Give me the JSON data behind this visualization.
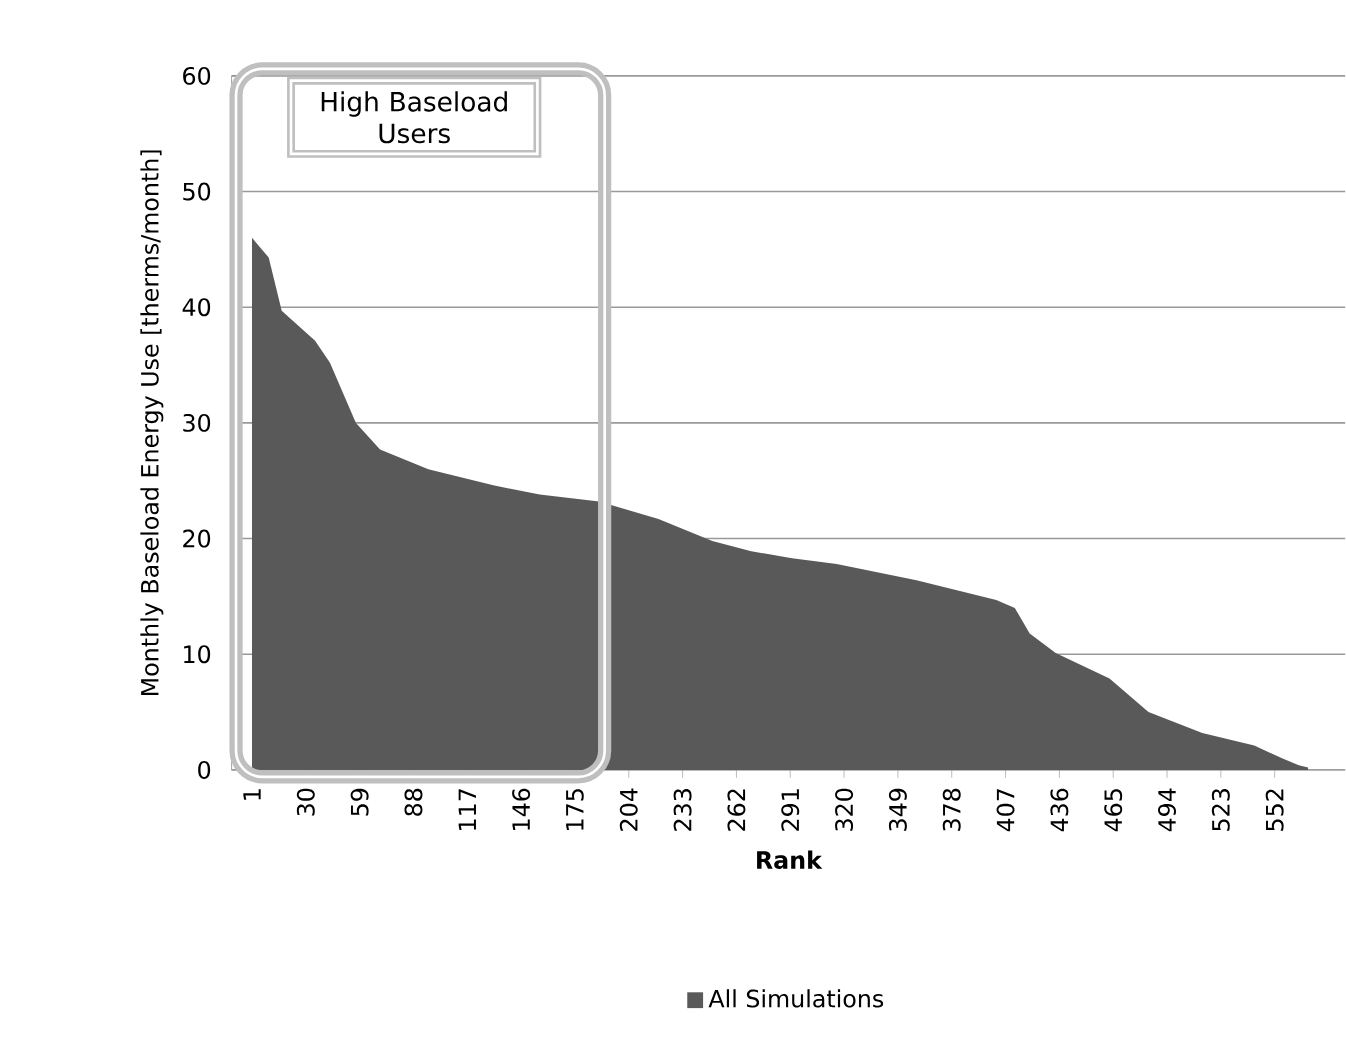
{
  "chart_data": {
    "type": "area",
    "xlabel": "Rank",
    "ylabel": "Monthly Baseload Energy Use [therms/month]",
    "x": [
      1,
      10,
      17,
      35,
      43,
      57,
      70,
      96,
      131,
      156,
      188,
      220,
      249,
      270,
      292,
      316,
      359,
      402,
      412,
      420,
      434,
      463,
      484,
      513,
      541,
      556,
      565,
      570
    ],
    "series": [
      {
        "name": "All Simulations",
        "color": "#595959",
        "values": [
          46,
          44.3,
          39.7,
          37.1,
          35.2,
          30,
          27.7,
          26,
          24.6,
          23.8,
          23.2,
          21.7,
          19.8,
          18.9,
          18.3,
          17.8,
          16.4,
          14.7,
          14,
          11.8,
          10.1,
          7.9,
          5,
          3.2,
          2.1,
          1,
          0.4,
          0.2
        ]
      }
    ],
    "xlim": [
      -10,
      590
    ],
    "ylim": [
      0,
      60
    ],
    "xticks": [
      1,
      30,
      59,
      88,
      117,
      146,
      175,
      204,
      233,
      262,
      291,
      320,
      349,
      378,
      407,
      436,
      465,
      494,
      523,
      552
    ],
    "yticks": [
      0,
      10,
      20,
      30,
      40,
      50,
      60
    ],
    "grid": "y",
    "legend": "bottom",
    "annotations": [
      "High Baseload Users"
    ]
  }
}
